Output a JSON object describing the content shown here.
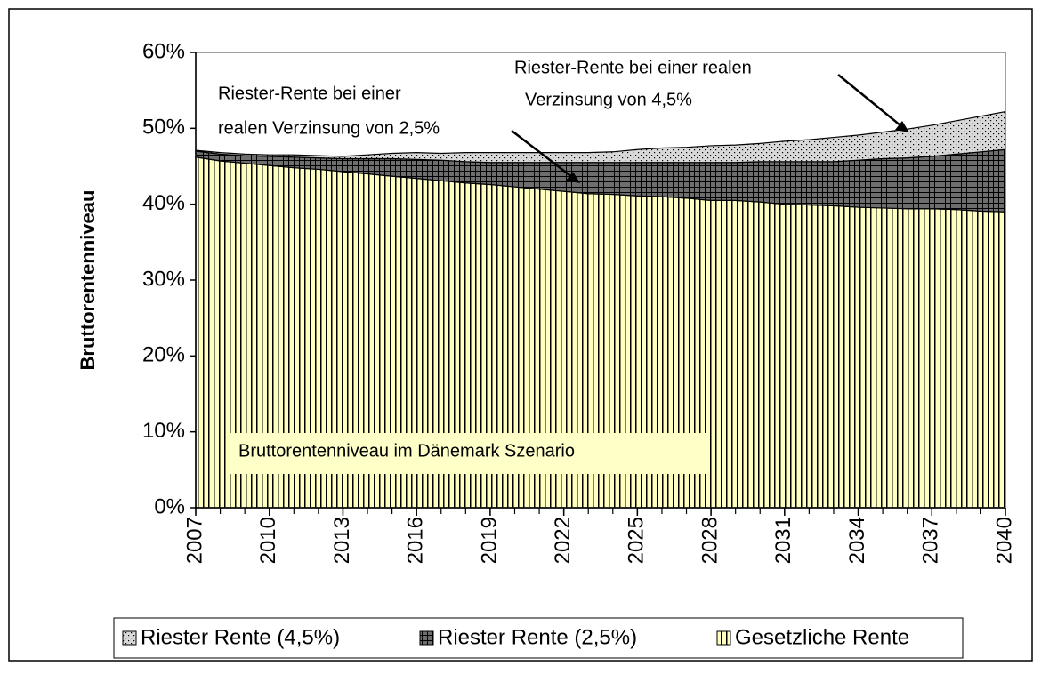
{
  "chart_data": {
    "type": "stacked_area",
    "y_label": "Bruttorentenniveau",
    "x": [
      2007,
      2008,
      2009,
      2010,
      2011,
      2012,
      2013,
      2014,
      2015,
      2016,
      2017,
      2018,
      2019,
      2020,
      2021,
      2022,
      2023,
      2024,
      2025,
      2026,
      2027,
      2028,
      2029,
      2030,
      2031,
      2032,
      2033,
      2034,
      2035,
      2036,
      2037,
      2038,
      2039,
      2040
    ],
    "xlim": [
      2007,
      2040
    ],
    "xticks": [
      2007,
      2010,
      2013,
      2016,
      2019,
      2022,
      2025,
      2028,
      2031,
      2034,
      2037,
      2040
    ],
    "ylim": [
      0,
      60
    ],
    "yticks": [
      {
        "value": 0,
        "label": "0%"
      },
      {
        "value": 10,
        "label": "10%"
      },
      {
        "value": 20,
        "label": "20%"
      },
      {
        "value": 30,
        "label": "30%"
      },
      {
        "value": 40,
        "label": "40%"
      },
      {
        "value": 50,
        "label": "50%"
      },
      {
        "value": 60,
        "label": "60%"
      }
    ],
    "legend": "bottom",
    "series": [
      {
        "name": "Riester Rente (4,5%)",
        "color": "#d8d8d8",
        "pattern": "dots",
        "values": [
          0.1,
          0.2,
          0.2,
          0.2,
          0.3,
          0.3,
          0.3,
          0.5,
          0.7,
          0.9,
          0.9,
          1.2,
          1.3,
          1.3,
          1.3,
          1.3,
          1.3,
          1.4,
          1.7,
          1.9,
          2.0,
          2.2,
          2.3,
          2.4,
          2.7,
          2.9,
          3.2,
          3.3,
          3.5,
          3.8,
          4.1,
          4.4,
          4.7,
          5.0
        ]
      },
      {
        "name": "Riester Rente (2,5%)",
        "color": "#6e6e6e",
        "pattern": "crosshatch",
        "values": [
          0.8,
          0.9,
          1.0,
          1.2,
          1.4,
          1.5,
          1.7,
          2.0,
          2.3,
          2.5,
          2.7,
          2.8,
          2.9,
          3.2,
          3.5,
          3.8,
          4.1,
          4.2,
          4.4,
          4.5,
          4.7,
          5.0,
          5.0,
          5.3,
          5.6,
          5.7,
          5.8,
          6.2,
          6.5,
          6.7,
          6.9,
          7.3,
          7.8,
          8.2
        ]
      },
      {
        "name": "Gesetzliche Rente",
        "color": "#ffffc0",
        "pattern": "vertical",
        "values": [
          46.2,
          45.7,
          45.4,
          45.1,
          44.8,
          44.6,
          44.3,
          44.0,
          43.7,
          43.4,
          43.1,
          42.8,
          42.6,
          42.3,
          42.0,
          41.7,
          41.4,
          41.3,
          41.1,
          41.0,
          40.8,
          40.5,
          40.5,
          40.3,
          40.0,
          39.9,
          39.8,
          39.6,
          39.5,
          39.4,
          39.4,
          39.3,
          39.1,
          39.0
        ]
      }
    ],
    "annotations": [
      [
        "Riester-Rente bei einer",
        "realen Verzinsung von 2,5%"
      ],
      [
        "Riester-Rente bei einer realen",
        "Verzinsung von 4,5%"
      ],
      [
        "Bruttorentenniveau im Dänemark Szenario"
      ]
    ]
  }
}
